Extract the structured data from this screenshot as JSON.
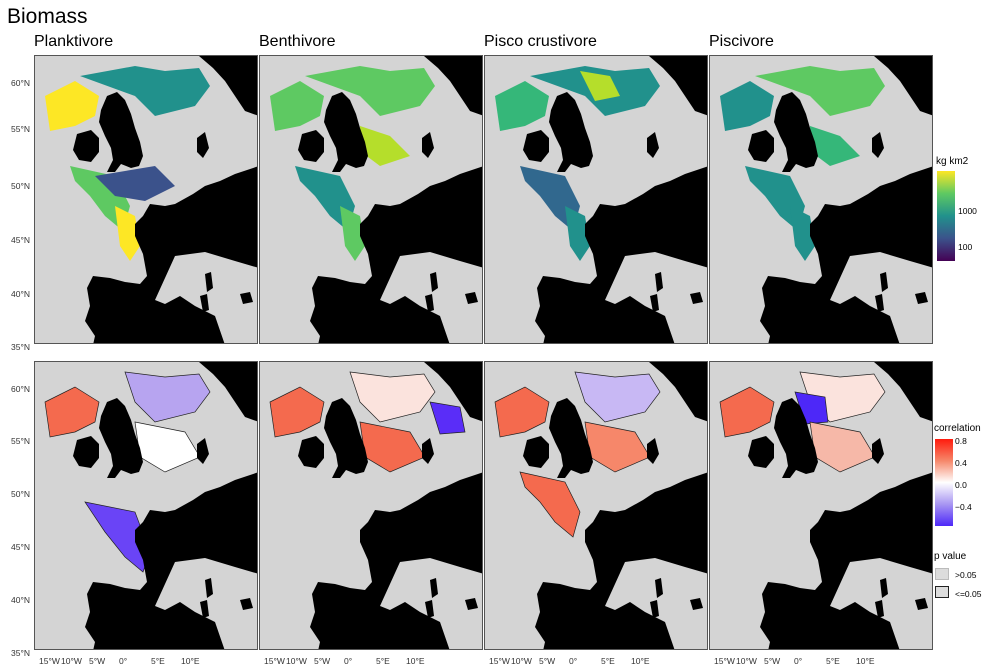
{
  "figure": {
    "title": "Biomass",
    "columns": [
      "Planktivore",
      "Benthivore",
      "Pisco crustivore",
      "Piscivore"
    ]
  },
  "axes": {
    "lat_labels": [
      "60°N",
      "55°N",
      "50°N",
      "45°N",
      "40°N",
      "35°N"
    ],
    "lon_labels": [
      "15°W",
      "10°W",
      "5°W",
      "0°",
      "5°E",
      "10°E"
    ]
  },
  "legends": {
    "biomass": {
      "title": "kg km2",
      "ticks": [
        "1000",
        "100"
      ],
      "palette": [
        "#fde725",
        "#5ec962",
        "#21918c",
        "#3b528b",
        "#440154"
      ]
    },
    "correlation": {
      "title": "correlation",
      "ticks": [
        "0.8",
        "0.4",
        "0.0",
        "−0.4"
      ],
      "palette": [
        "#ff0000",
        "#f4a28a",
        "#ffffff",
        "#b7a4f0",
        "#5a2df8"
      ]
    },
    "pvalue": {
      "title": "p value",
      "items": [
        ">0.05",
        "<=0.05"
      ]
    }
  },
  "colors": {
    "land": "#000000",
    "sea_background": "#d4d4d4"
  }
}
